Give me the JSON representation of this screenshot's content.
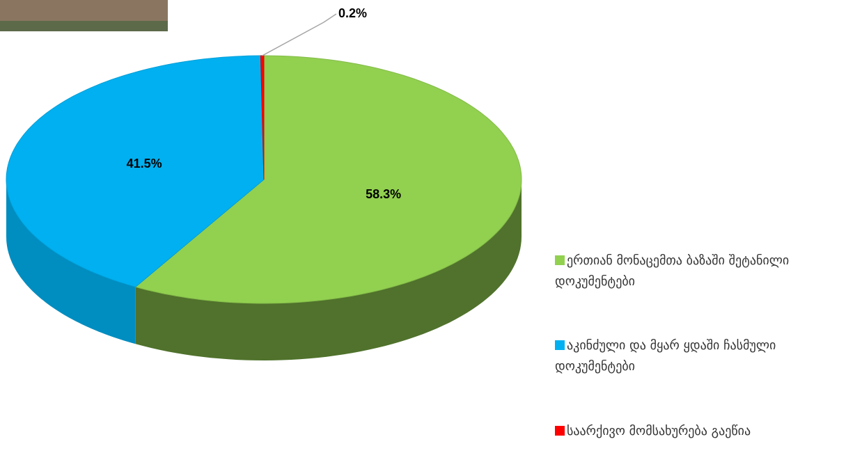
{
  "chart_data": {
    "type": "pie",
    "categories": [
      "ერთიან მონაცემთა ბაზაში შეტანილი დოკუმენტები",
      "აკინძული და მყარ ყდაში ჩასმული დოკუმენტები",
      "საარქივო მომსახურება გაეწია"
    ],
    "values": [
      58.3,
      41.5,
      0.2
    ],
    "value_labels": [
      "58.3%",
      "41.5%",
      "0.2%"
    ],
    "colors": [
      "#92d050",
      "#00b0f0",
      "#ff0000"
    ],
    "legend": "right"
  }
}
